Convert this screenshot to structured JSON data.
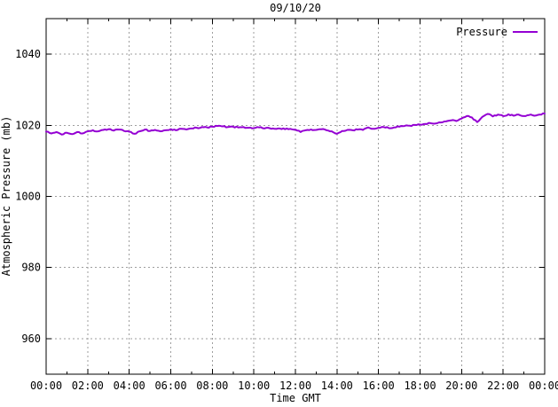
{
  "window": {
    "background": "#ffffff"
  },
  "chart_data": {
    "type": "line",
    "title": "09/10/20",
    "xlabel": "Time GMT",
    "ylabel": "Atmospheric Pressure (mb)",
    "legend_label": "Pressure",
    "legend_position": "top-right-inside",
    "grid": true,
    "line_color": "#9400d3",
    "grid_color": "#9e9e9e",
    "border_color": "#000000",
    "xlim_hours": [
      0,
      24
    ],
    "ylim": [
      950,
      1050
    ],
    "x_tick_hours": [
      0,
      2,
      4,
      6,
      8,
      10,
      12,
      14,
      16,
      18,
      20,
      22,
      24
    ],
    "x_tick_labels": [
      "00:00",
      "02:00",
      "04:00",
      "06:00",
      "08:00",
      "10:00",
      "12:00",
      "14:00",
      "16:00",
      "18:00",
      "20:00",
      "22:00",
      "00:00"
    ],
    "x_minor_tick_hours": [
      1,
      3,
      5,
      7,
      9,
      11,
      13,
      15,
      17,
      19,
      21,
      23
    ],
    "y_ticks": [
      960,
      980,
      1000,
      1020,
      1040
    ],
    "series": [
      {
        "name": "Pressure",
        "points": [
          [
            0.0,
            1018.2
          ],
          [
            0.25,
            1017.7
          ],
          [
            0.5,
            1018.1
          ],
          [
            0.75,
            1017.4
          ],
          [
            1.0,
            1017.9
          ],
          [
            1.25,
            1017.5
          ],
          [
            1.5,
            1018.1
          ],
          [
            1.75,
            1017.7
          ],
          [
            2.0,
            1018.3
          ],
          [
            2.25,
            1018.6
          ],
          [
            2.5,
            1018.3
          ],
          [
            2.75,
            1018.7
          ],
          [
            3.0,
            1018.9
          ],
          [
            3.25,
            1018.5
          ],
          [
            3.5,
            1018.8
          ],
          [
            3.75,
            1018.4
          ],
          [
            4.0,
            1018.2
          ],
          [
            4.25,
            1017.6
          ],
          [
            4.5,
            1018.3
          ],
          [
            4.75,
            1018.8
          ],
          [
            5.0,
            1018.4
          ],
          [
            5.25,
            1018.7
          ],
          [
            5.5,
            1018.3
          ],
          [
            5.75,
            1018.6
          ],
          [
            6.0,
            1018.9
          ],
          [
            6.25,
            1018.6
          ],
          [
            6.5,
            1019.0
          ],
          [
            6.75,
            1018.8
          ],
          [
            7.0,
            1019.1
          ],
          [
            7.25,
            1019.3
          ],
          [
            7.5,
            1019.5
          ],
          [
            7.75,
            1019.4
          ],
          [
            8.0,
            1019.6
          ],
          [
            8.25,
            1019.8
          ],
          [
            8.5,
            1019.7
          ],
          [
            8.75,
            1019.5
          ],
          [
            9.0,
            1019.6
          ],
          [
            9.25,
            1019.4
          ],
          [
            9.5,
            1019.5
          ],
          [
            9.75,
            1019.3
          ],
          [
            10.0,
            1019.2
          ],
          [
            10.25,
            1019.4
          ],
          [
            10.5,
            1019.1
          ],
          [
            10.75,
            1019.2
          ],
          [
            11.0,
            1019.0
          ],
          [
            11.25,
            1019.1
          ],
          [
            11.5,
            1018.9
          ],
          [
            11.75,
            1019.0
          ],
          [
            12.0,
            1018.8
          ],
          [
            12.25,
            1018.1
          ],
          [
            12.5,
            1018.6
          ],
          [
            12.75,
            1018.8
          ],
          [
            13.0,
            1018.7
          ],
          [
            13.25,
            1018.9
          ],
          [
            13.5,
            1018.6
          ],
          [
            13.75,
            1018.3
          ],
          [
            14.0,
            1017.6
          ],
          [
            14.25,
            1018.4
          ],
          [
            14.5,
            1018.7
          ],
          [
            14.75,
            1018.6
          ],
          [
            15.0,
            1018.8
          ],
          [
            15.25,
            1018.7
          ],
          [
            15.5,
            1019.4
          ],
          [
            15.75,
            1019.0
          ],
          [
            16.0,
            1019.3
          ],
          [
            16.25,
            1019.5
          ],
          [
            16.5,
            1019.2
          ],
          [
            16.75,
            1019.4
          ],
          [
            17.0,
            1019.6
          ],
          [
            17.25,
            1019.8
          ],
          [
            17.5,
            1019.9
          ],
          [
            17.75,
            1020.1
          ],
          [
            18.0,
            1020.2
          ],
          [
            18.25,
            1020.4
          ],
          [
            18.5,
            1020.6
          ],
          [
            18.75,
            1020.5
          ],
          [
            19.0,
            1020.8
          ],
          [
            19.25,
            1021.1
          ],
          [
            19.5,
            1021.4
          ],
          [
            19.75,
            1021.2
          ],
          [
            20.0,
            1021.9
          ],
          [
            20.25,
            1022.6
          ],
          [
            20.5,
            1022.2
          ],
          [
            20.75,
            1020.9
          ],
          [
            21.0,
            1022.4
          ],
          [
            21.25,
            1023.2
          ],
          [
            21.5,
            1022.5
          ],
          [
            21.75,
            1023.0
          ],
          [
            22.0,
            1022.6
          ],
          [
            22.25,
            1023.1
          ],
          [
            22.5,
            1022.7
          ],
          [
            22.75,
            1023.0
          ],
          [
            23.0,
            1022.6
          ],
          [
            23.25,
            1022.9
          ],
          [
            23.5,
            1022.7
          ],
          [
            23.75,
            1023.0
          ],
          [
            24.0,
            1023.3
          ]
        ]
      }
    ]
  }
}
